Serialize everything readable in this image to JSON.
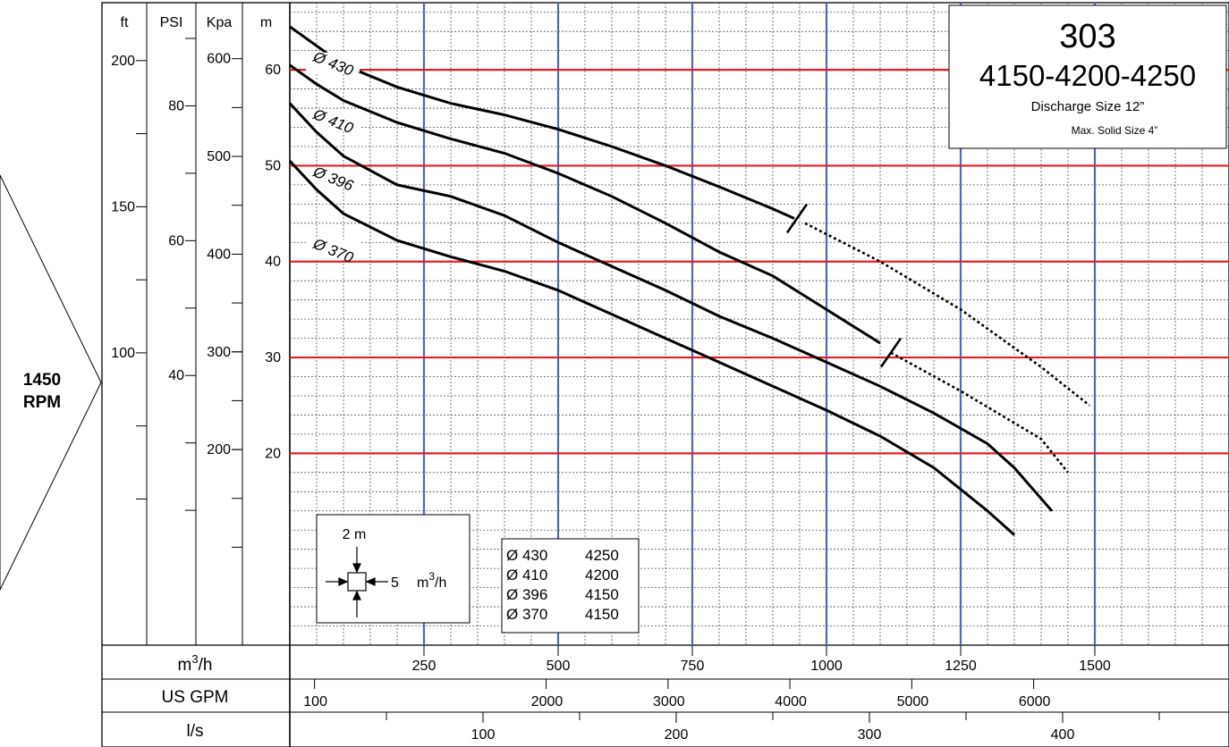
{
  "rpm_label": {
    "line1": "1450",
    "line2": "RPM"
  },
  "info_box": {
    "model": "303",
    "variants": "4150-4200-4250",
    "discharge": "Discharge Size 12”",
    "max_solid": "Max. Solid Size 4”"
  },
  "scale_box": {
    "m_label": "2 m",
    "flow_label": "5",
    "unit_base": "m",
    "unit_sup": "3",
    "unit_rest": "/h"
  },
  "legend": [
    {
      "diameter": "Ø 430",
      "model": "4250"
    },
    {
      "diameter": "Ø 410",
      "model": "4200"
    },
    {
      "diameter": "Ø 396",
      "model": "4150"
    },
    {
      "diameter": "Ø 370",
      "model": "4150"
    }
  ],
  "bottom_rows": {
    "m3h": {
      "base": "m",
      "sup": "3",
      "rest": "/h"
    },
    "usgpm": "US GPM",
    "ls": "l/s"
  },
  "chart_data": {
    "type": "line",
    "xlabel": "m3/h",
    "ylabel": "m",
    "xlim": [
      0,
      1750
    ],
    "ylim": [
      0,
      67
    ],
    "grid": true,
    "head_scales": [
      {
        "unit": "ft",
        "ticks": [
          {
            "label": "200",
            "value": 60.96
          },
          {
            "label": "150",
            "value": 45.72
          },
          {
            "label": "100",
            "value": 30.48
          }
        ]
      },
      {
        "unit": "PSI",
        "ticks": [
          {
            "label": "80",
            "value": 56.24
          },
          {
            "label": "60",
            "value": 42.18
          },
          {
            "label": "40",
            "value": 28.12
          }
        ]
      },
      {
        "unit": "Kpa",
        "ticks": [
          {
            "label": "600",
            "value": 61.16
          },
          {
            "label": "500",
            "value": 50.97
          },
          {
            "label": "400",
            "value": 40.77
          },
          {
            "label": "300",
            "value": 30.58
          },
          {
            "label": "200",
            "value": 20.39
          }
        ]
      },
      {
        "unit": "m",
        "ticks": [
          {
            "label": "60",
            "value": 60
          },
          {
            "label": "50",
            "value": 50
          },
          {
            "label": "40",
            "value": 40
          },
          {
            "label": "30",
            "value": 30
          },
          {
            "label": "20",
            "value": 20
          }
        ]
      }
    ],
    "x_ticks": [
      250,
      500,
      750,
      1000,
      1250,
      1500
    ],
    "x_tick_labels": [
      "250",
      "500",
      "750",
      "1000",
      "1250",
      "1500"
    ],
    "usgpm_ticks": [
      {
        "label": "100",
        "value": 22.7
      },
      {
        "label": "2000",
        "value": 454.2
      },
      {
        "label": "3000",
        "value": 681.4
      },
      {
        "label": "4000",
        "value": 908.5
      },
      {
        "label": "5000",
        "value": 1135.6
      },
      {
        "label": "6000",
        "value": 1362.7
      }
    ],
    "ls_ticks": [
      {
        "label": "100",
        "value": 360
      },
      {
        "label": "200",
        "value": 720
      },
      {
        "label": "300",
        "value": 1080
      },
      {
        "label": "400",
        "value": 1440
      }
    ],
    "series": [
      {
        "name": "Ø 430",
        "x": [
          0,
          50,
          100,
          200,
          300,
          400,
          500,
          600,
          700,
          800,
          900,
          940
        ],
        "y": [
          64.5,
          62.5,
          60.5,
          58.2,
          56.5,
          55.3,
          53.8,
          52.0,
          50.0,
          47.8,
          45.5,
          44.5
        ],
        "ext_x": [
          960,
          1100,
          1250,
          1400,
          1490
        ],
        "ext_y": [
          44.0,
          40.0,
          35.0,
          29.0,
          25.0
        ]
      },
      {
        "name": "Ø 410",
        "x": [
          0,
          50,
          100,
          200,
          300,
          400,
          500,
          600,
          700,
          800,
          900,
          1000,
          1100
        ],
        "y": [
          60.5,
          58.5,
          56.8,
          54.5,
          52.8,
          51.3,
          49.2,
          46.8,
          44.0,
          41.0,
          38.5,
          35.0,
          31.5
        ],
        "ext_x": [
          1120,
          1250,
          1400,
          1450
        ],
        "ext_y": [
          30.5,
          26.5,
          21.5,
          18.0
        ]
      },
      {
        "name": "Ø 396",
        "x": [
          0,
          50,
          100,
          200,
          300,
          400,
          500,
          600,
          700,
          800,
          900,
          1000,
          1100,
          1200,
          1300,
          1350,
          1420
        ],
        "y": [
          56.5,
          53.5,
          51.0,
          48.0,
          46.8,
          44.8,
          42.0,
          39.5,
          37.0,
          34.3,
          32.0,
          29.5,
          27.0,
          24.2,
          21.0,
          18.5,
          14.0
        ]
      },
      {
        "name": "Ø 370",
        "x": [
          0,
          50,
          100,
          200,
          300,
          400,
          500,
          600,
          700,
          800,
          900,
          1000,
          1100,
          1200,
          1300,
          1350
        ],
        "y": [
          50.5,
          47.5,
          45.0,
          42.2,
          40.5,
          39.0,
          37.0,
          34.5,
          32.0,
          29.5,
          27.0,
          24.5,
          21.8,
          18.5,
          14.0,
          11.5
        ]
      }
    ],
    "cutoff_marks": [
      {
        "series": "Ø 430",
        "x": 945,
        "y": 44.5
      },
      {
        "series": "Ø 410",
        "x": 1120,
        "y": 30.5
      }
    ],
    "highlight_lines": {
      "red_y": [
        60,
        50,
        40,
        30,
        20
      ],
      "blue_x": [
        250,
        500,
        750,
        1000,
        1250,
        1500
      ]
    },
    "colors": {
      "red": "#e21f26",
      "blue": "#4f6bb0",
      "grid": "#555555"
    }
  }
}
